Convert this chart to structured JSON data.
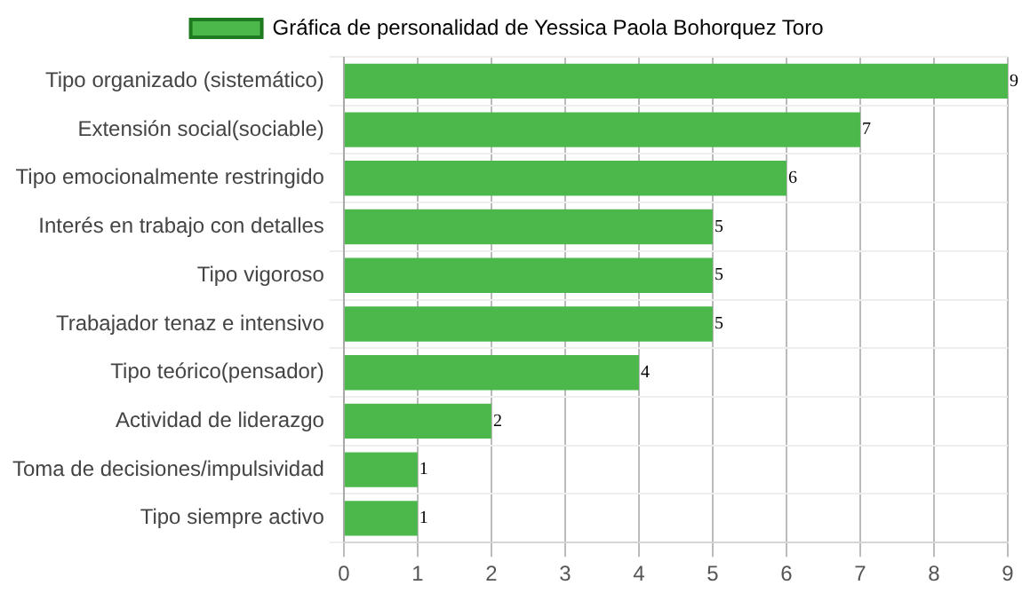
{
  "chart_data": {
    "type": "bar",
    "orientation": "horizontal",
    "categories": [
      "Tipo organizado (sistemático)",
      "Extensión social(sociable)",
      "Tipo emocionalmente restringido",
      "Interés en trabajo con detalles",
      "Tipo vigoroso",
      "Trabajador tenaz e intensivo",
      "Tipo teórico(pensador)",
      "Actividad de liderazgo",
      "Toma de decisiones/impulsividad",
      "Tipo siempre activo"
    ],
    "series": [
      {
        "name": "Gráfica de personalidad de Yessica Paola Bohorquez Toro",
        "color": "#4cb84c",
        "values": [
          9,
          7,
          6,
          5,
          5,
          5,
          4,
          2,
          1,
          1
        ]
      }
    ],
    "xlim": [
      0,
      9
    ],
    "xticks": [
      0,
      1,
      2,
      3,
      4,
      5,
      6,
      7,
      8,
      9
    ],
    "grid": true,
    "legend": "top",
    "data_labels": true
  }
}
